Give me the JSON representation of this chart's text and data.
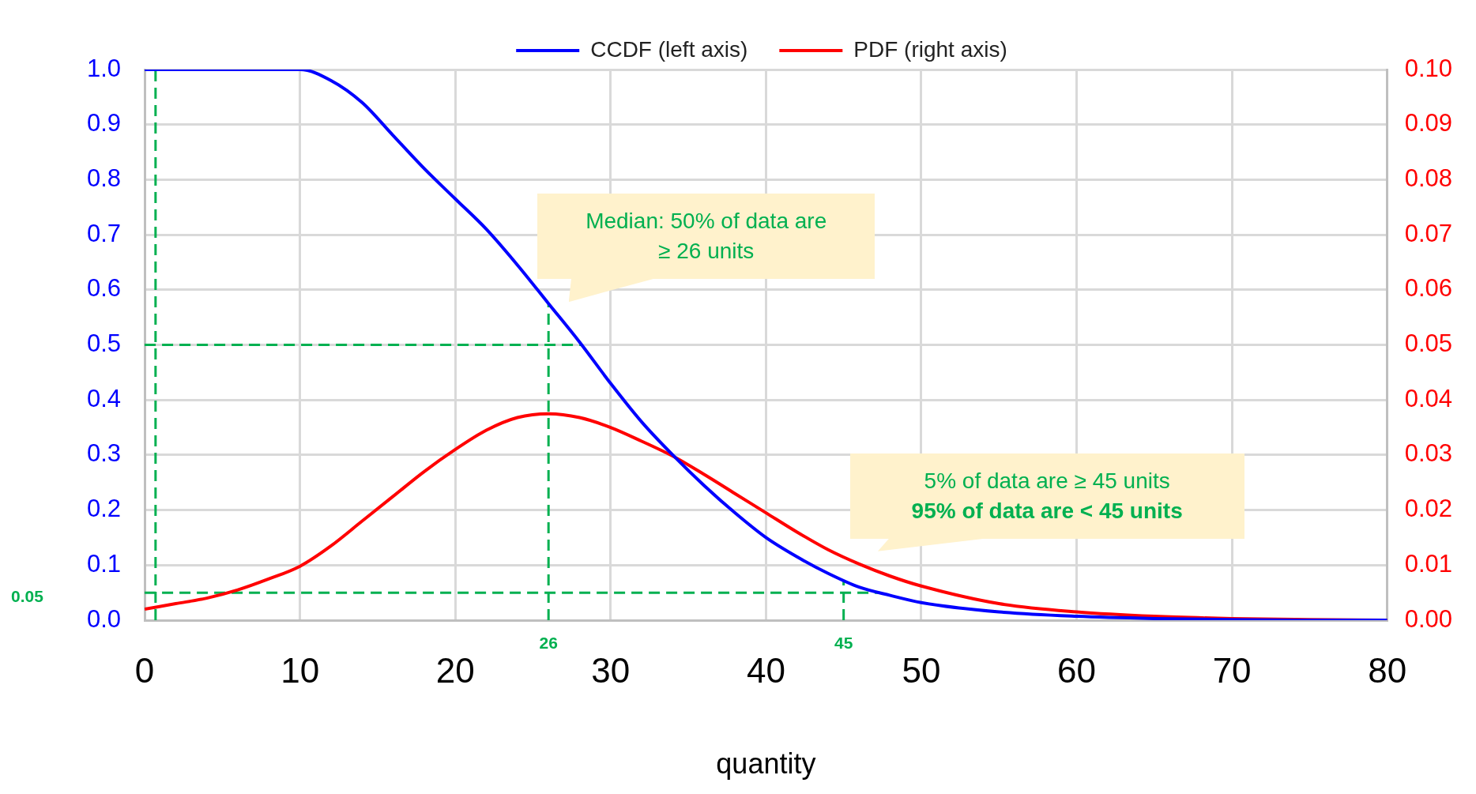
{
  "chart_data": {
    "type": "line",
    "xlabel": "quantity",
    "xlim": [
      0,
      80
    ],
    "xticks": [
      0,
      10,
      20,
      30,
      40,
      50,
      60,
      70,
      80
    ],
    "ylim": [
      0,
      1
    ],
    "yticks": [
      {
        "value": 0,
        "label": "0.0"
      },
      0.1,
      0.2,
      0.3,
      0.4,
      0.5,
      0.6,
      0.7,
      0.8,
      0.9,
      {
        "value": 1,
        "label": "1.0"
      }
    ],
    "y2lim": [
      0,
      0.1
    ],
    "y2ticks": [
      {
        "value": 0,
        "label": "0.00"
      },
      0.01,
      0.02,
      0.03,
      0.04,
      0.05,
      0.06,
      0.07,
      0.08,
      0.09,
      {
        "value": 0.1,
        "label": "0.10"
      }
    ],
    "grid": true,
    "legend": "top",
    "marker": "none",
    "line_style": "solid",
    "series": [
      {
        "name": "CCDF (left axis)",
        "color": "#0000ff",
        "x": [
          0,
          5,
          10,
          12,
          14,
          16,
          18,
          20,
          22,
          24,
          26,
          28,
          30,
          32,
          34,
          36,
          38,
          40,
          42,
          44,
          46,
          48,
          50,
          55,
          60,
          65,
          70,
          75,
          80
        ],
        "values": [
          1.0,
          1.0,
          1.0,
          0.98,
          0.94,
          0.88,
          0.82,
          0.765,
          0.71,
          0.645,
          0.575,
          0.505,
          0.43,
          0.36,
          0.3,
          0.245,
          0.195,
          0.15,
          0.115,
          0.085,
          0.06,
          0.045,
          0.032,
          0.015,
          0.007,
          0.003,
          0.001,
          0,
          0
        ]
      },
      {
        "name": "PDF (right axis)",
        "color": "#ff0000",
        "axis": "y2",
        "x": [
          0,
          2,
          4,
          6,
          8,
          10,
          12,
          14,
          16,
          18,
          20,
          22,
          24,
          26,
          28,
          30,
          32,
          34,
          36,
          38,
          40,
          42,
          44,
          46,
          48,
          50,
          55,
          60,
          65,
          70,
          75,
          80
        ],
        "values": [
          0.002,
          0.003,
          0.004,
          0.0055,
          0.0075,
          0.0098,
          0.0135,
          0.018,
          0.0225,
          0.027,
          0.031,
          0.0345,
          0.0368,
          0.0375,
          0.0368,
          0.035,
          0.0325,
          0.0298,
          0.0265,
          0.023,
          0.0195,
          0.016,
          0.0128,
          0.0102,
          0.008,
          0.0062,
          0.003,
          0.0015,
          0.0007,
          0.0003,
          0.0001,
          0
        ]
      }
    ],
    "ref_lines": [
      {
        "axis": "x",
        "value": 0.7,
        "color": "#00b050",
        "line_style": "dashed"
      },
      {
        "axis": "y",
        "value": 0.5,
        "color": "#00b050",
        "line_style": "dashed"
      },
      {
        "axis": "x",
        "value": 26,
        "label": "26",
        "color": "#00b050",
        "line_style": "dashed"
      },
      {
        "axis": "y",
        "value": 0.05,
        "label": "0.05",
        "color": "#00b050",
        "line_style": "dashed"
      },
      {
        "axis": "x",
        "value": 45,
        "label": "45",
        "color": "#00b050",
        "line_style": "dashed"
      }
    ],
    "annotations": [
      "Median: 50% of data are\n≥ 26 units",
      "5% of data are ≥ 45 units\n95% of data are < 45 units"
    ]
  }
}
